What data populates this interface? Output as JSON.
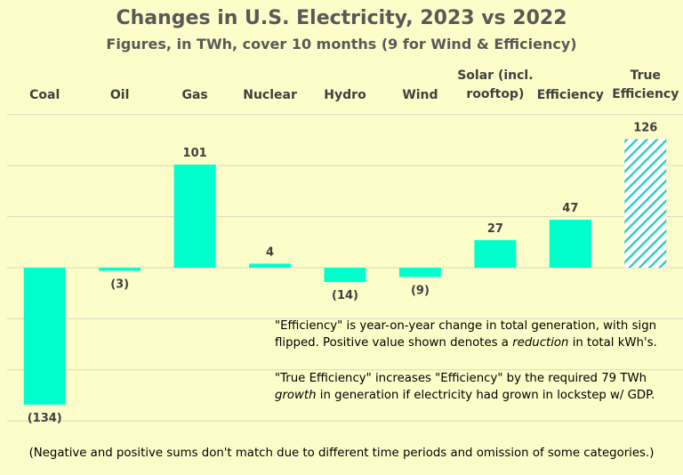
{
  "chart_data": {
    "type": "bar",
    "title": "Changes in U.S. Electricity, 2023 vs 2022",
    "subtitle": "Figures, in TWh, cover 10 months (9 for Wind & Efficiency)",
    "categories": [
      [
        "Coal"
      ],
      [
        "Oil"
      ],
      [
        "Gas"
      ],
      [
        "Nuclear"
      ],
      [
        "Hydro"
      ],
      [
        "Wind"
      ],
      [
        "Solar (incl.",
        "rooftop)"
      ],
      [
        "Efficiency"
      ],
      [
        "True",
        "Efficiency"
      ]
    ],
    "values": [
      -134,
      -3,
      101,
      4,
      -14,
      -9,
      27,
      47,
      126
    ],
    "value_labels": [
      "(134)",
      "(3)",
      "101",
      "4",
      "(14)",
      "(9)",
      "27",
      "47",
      "126"
    ],
    "hatched": [
      false,
      false,
      false,
      false,
      false,
      false,
      false,
      false,
      true
    ],
    "ylim": [
      -150,
      150
    ],
    "grid": true,
    "xlabel": "",
    "ylabel": ""
  },
  "notes": {
    "efficiency_pre": "\"Efficiency\" is year-on-year change in total generation, with sign flipped. Positive value shown denotes a ",
    "efficiency_em": "reduction",
    "efficiency_post": " in total kWh's.",
    "true_pre": "\"True Efficiency\" increases \"Efficiency\" by the required 79 TWh ",
    "true_em": "growth",
    "true_post": " in generation if electricity had grown in lockstep w/ GDP."
  },
  "footnote": "(Negative and positive sums don't match due to different time periods and omission of some categories.)",
  "colors": {
    "bar": "#00ffcc",
    "hatch_line": "#33cccc",
    "background": "#fdfdc9",
    "grid": "#d9d9c0"
  }
}
